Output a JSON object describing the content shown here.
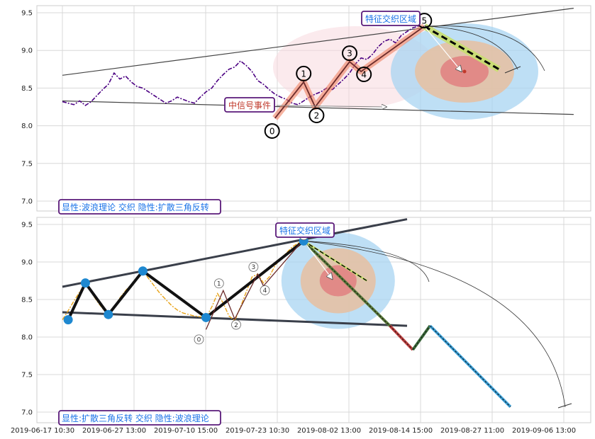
{
  "colors": {
    "top_price": "#4b0082",
    "bottom_price": "#e8a317",
    "box_border": "#5a1a7a",
    "top_text": "#1a73e8",
    "bottom_text": "#1a73e8",
    "event_text": "#c0392b",
    "wave": "#f08060",
    "zone_outer": "#a8d4f2",
    "zone_mid": "#e8bfa0",
    "zone_inner": "#e08080"
  },
  "chart_data": [
    {
      "type": "line",
      "panel": "top",
      "ylim": [
        6.95,
        9.6
      ],
      "yticks": [
        "7.0",
        "7.5",
        "8.0",
        "8.5",
        "9.0",
        "9.5"
      ],
      "title": "",
      "xlabel": "",
      "ylabel": "",
      "annotation_top_right": "特征交织区域",
      "annotation_event": "中信号事件",
      "caption": "显性:波浪理论 交织 隐性:扩散三角反转",
      "wave_labels": [
        "0",
        "1",
        "2",
        "3",
        "4",
        "5"
      ],
      "wave_points": [
        [
          37,
          8.1
        ],
        [
          42,
          8.58
        ],
        [
          44,
          8.25
        ],
        [
          50,
          8.85
        ],
        [
          52,
          8.72
        ],
        [
          63,
          9.32
        ]
      ],
      "trend_upper": [
        [
          0,
          8.67
        ],
        [
          89,
          9.56
        ]
      ],
      "trend_lower": [
        [
          0,
          8.33
        ],
        [
          89,
          8.15
        ]
      ],
      "projection": [
        [
          63,
          9.32
        ],
        [
          76,
          8.75
        ]
      ],
      "projection_secondary": [
        [
          63,
          9.32
        ],
        [
          70,
          8.7
        ]
      ],
      "zone_center": [
        70,
        8.72
      ],
      "price": [
        8.32,
        8.3,
        8.28,
        8.33,
        8.27,
        8.32,
        8.4,
        8.48,
        8.55,
        8.7,
        8.62,
        8.66,
        8.58,
        8.52,
        8.5,
        8.45,
        8.4,
        8.35,
        8.3,
        8.33,
        8.38,
        8.35,
        8.32,
        8.3,
        8.38,
        8.45,
        8.5,
        8.6,
        8.68,
        8.75,
        8.78,
        8.86,
        8.8,
        8.72,
        8.6,
        8.55,
        8.48,
        8.42,
        8.38,
        8.35,
        8.3,
        8.28,
        8.33,
        8.38,
        8.42,
        8.45,
        8.5,
        8.48,
        8.55,
        8.62,
        8.7,
        8.82,
        8.9,
        8.88,
        8.95,
        9.05,
        9.12,
        9.15,
        9.1,
        9.2,
        9.25,
        9.3,
        9.32
      ]
    },
    {
      "type": "line",
      "panel": "bottom",
      "ylim": [
        6.95,
        9.6
      ],
      "yticks": [
        "7.0",
        "7.5",
        "8.0",
        "8.5",
        "9.0",
        "9.5"
      ],
      "xticks": [
        "2019-06-17 10:30",
        "2019-06-27 13:00",
        "2019-07-10 15:00",
        "2019-07-23 10:30",
        "2019-08-02 13:00",
        "2019-08-14 15:00",
        "2019-08-27 11:00",
        "2019-09-06 13:00"
      ],
      "title": "",
      "xlabel": "",
      "ylabel": "",
      "annotation_top_right": "特征交织区域",
      "caption": "显性:扩散三角反转 交织 隐性:波浪理论",
      "wave_labels": [
        "0",
        "1",
        "2",
        "3",
        "4",
        "5"
      ],
      "wave_points": [
        [
          25,
          8.1
        ],
        [
          28,
          8.62
        ],
        [
          30,
          8.24
        ],
        [
          34,
          8.84
        ],
        [
          35,
          8.68
        ],
        [
          42,
          9.3
        ]
      ],
      "pivots": [
        [
          1,
          8.23
        ],
        [
          4,
          8.72
        ],
        [
          8,
          8.3
        ],
        [
          14,
          8.88
        ],
        [
          25,
          8.26
        ],
        [
          42,
          9.28
        ]
      ],
      "trend_upper": [
        [
          0,
          8.67
        ],
        [
          60,
          9.57
        ]
      ],
      "trend_lower": [
        [
          0,
          8.33
        ],
        [
          60,
          8.15
        ]
      ],
      "projection_path": [
        [
          42,
          9.28
        ],
        [
          57,
          8.15
        ],
        [
          61,
          7.83
        ],
        [
          64,
          8.15
        ],
        [
          78,
          7.07
        ]
      ],
      "projection_short": [
        [
          42,
          9.28
        ],
        [
          53,
          8.75
        ]
      ],
      "projection_arrow": [
        [
          42,
          9.28
        ],
        [
          47,
          8.77
        ]
      ],
      "zone_center": [
        48,
        8.75
      ],
      "price": [
        8.23,
        8.35,
        8.48,
        8.6,
        8.72,
        8.6,
        8.48,
        8.38,
        8.3,
        8.4,
        8.52,
        8.62,
        8.7,
        8.8,
        8.88,
        8.78,
        8.68,
        8.58,
        8.5,
        8.42,
        8.36,
        8.32,
        8.3,
        8.28,
        8.27,
        8.26,
        8.4,
        8.58,
        8.45,
        8.28,
        8.22,
        8.4,
        8.6,
        8.8,
        8.84,
        8.72,
        8.8,
        8.95,
        9.05,
        9.12,
        9.2,
        9.25,
        9.3
      ]
    }
  ]
}
